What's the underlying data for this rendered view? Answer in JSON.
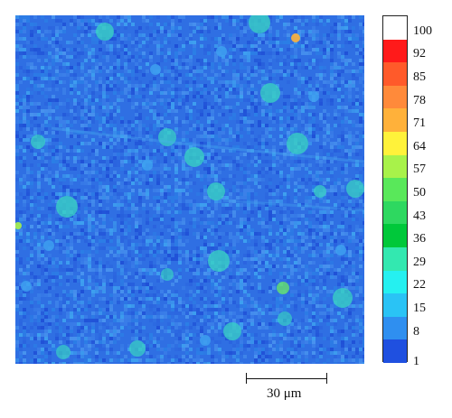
{
  "map": {
    "background_color": "#2f6fe3",
    "noise_colors": [
      "#1f4fd6",
      "#2a63de",
      "#3d82ea",
      "#4a95ef",
      "#2b7fe6",
      "#3fa3f0"
    ]
  },
  "colorbar": {
    "levels": [
      {
        "label": "100",
        "color": "#ffffff"
      },
      {
        "label": "92",
        "color": "#ff1a1a"
      },
      {
        "label": "85",
        "color": "#ff5a2a"
      },
      {
        "label": "78",
        "color": "#ff8a3a"
      },
      {
        "label": "71",
        "color": "#ffb13a"
      },
      {
        "label": "64",
        "color": "#fff23a"
      },
      {
        "label": "57",
        "color": "#a8f24a"
      },
      {
        "label": "50",
        "color": "#59e85a"
      },
      {
        "label": "43",
        "color": "#2ed860"
      },
      {
        "label": "36",
        "color": "#00c83a"
      },
      {
        "label": "29",
        "color": "#33e8b0"
      },
      {
        "label": "22",
        "color": "#25f0f0"
      },
      {
        "label": "15",
        "color": "#2ac3f5"
      },
      {
        "label": "8",
        "color": "#2f8ff0"
      },
      {
        "label": "1",
        "color": "#1f50e0"
      }
    ]
  },
  "scale_bar": {
    "label": "30 μm"
  }
}
